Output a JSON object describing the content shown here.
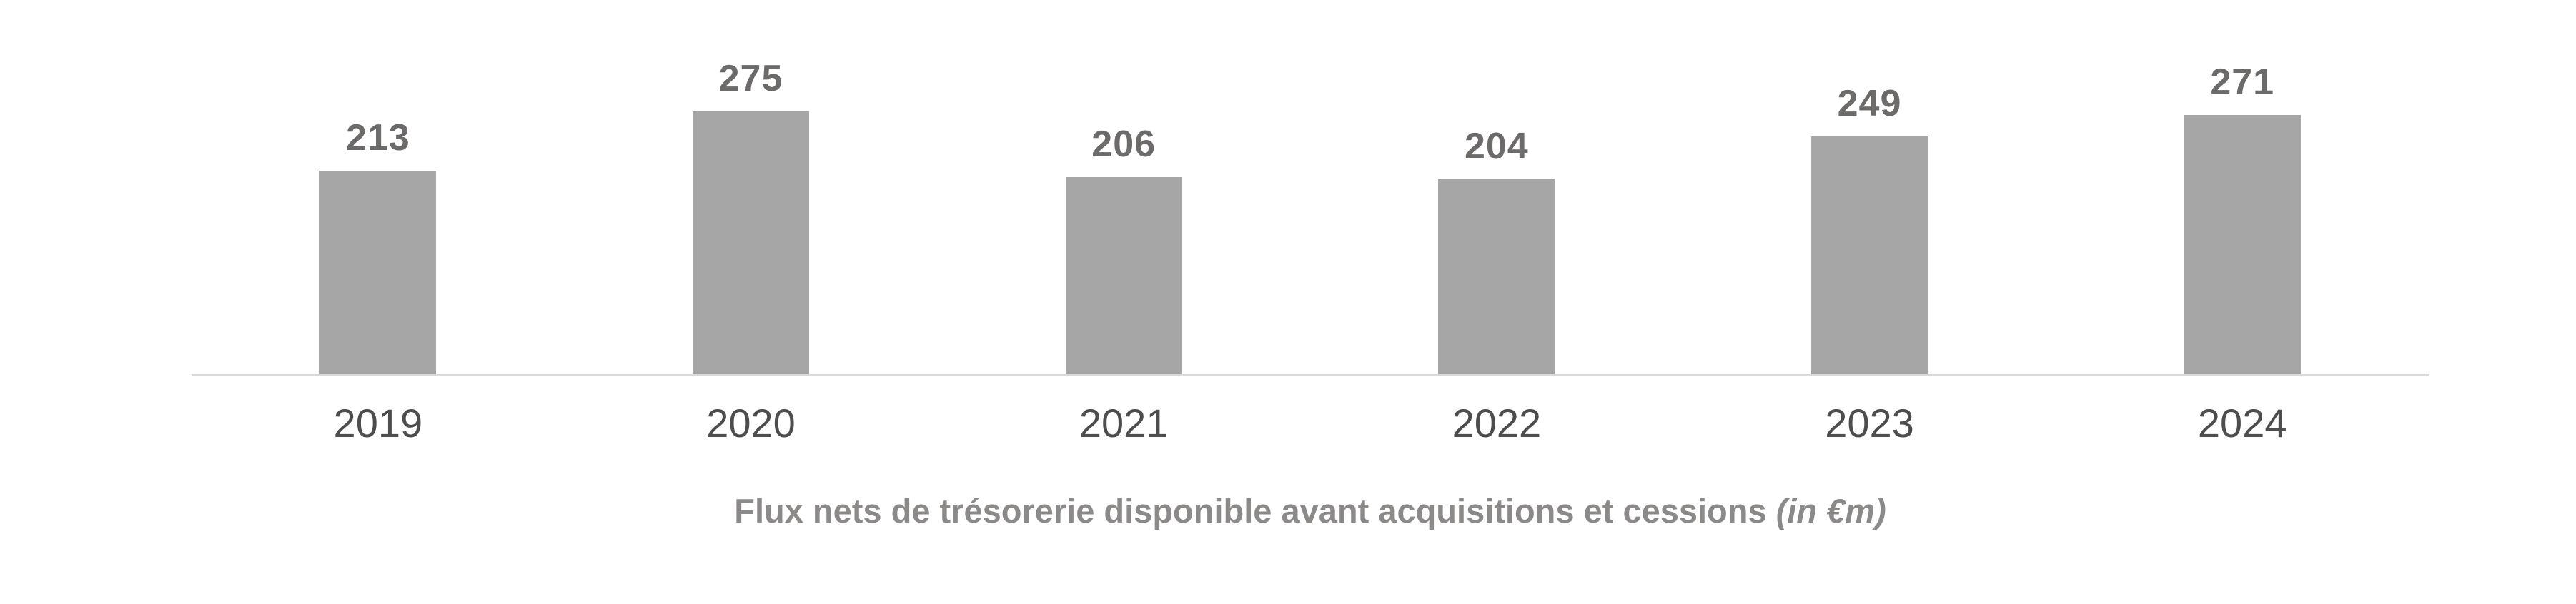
{
  "chart_data": {
    "type": "bar",
    "categories": [
      "2019",
      "2020",
      "2021",
      "2022",
      "2023",
      "2024"
    ],
    "values": [
      213,
      275,
      206,
      204,
      249,
      271
    ],
    "title": "Flux nets de trésorerie disponible avant acquisitions et cessions (in €m)",
    "title_main": "Flux nets de trésorerie disponible avant acquisitions et cessions",
    "title_unit": "(in €m)",
    "xlabel": "",
    "ylabel": "",
    "ylim": [
      0,
      300
    ],
    "grid": "off",
    "legend": "none",
    "data_labels": "above-bars",
    "colors": {
      "bar_fill": "#a6a6a6",
      "value_label": "#6d6a6a",
      "category_label": "#4d4d4d",
      "axis_line": "#d9d9d9",
      "title": "#8c8989"
    }
  }
}
